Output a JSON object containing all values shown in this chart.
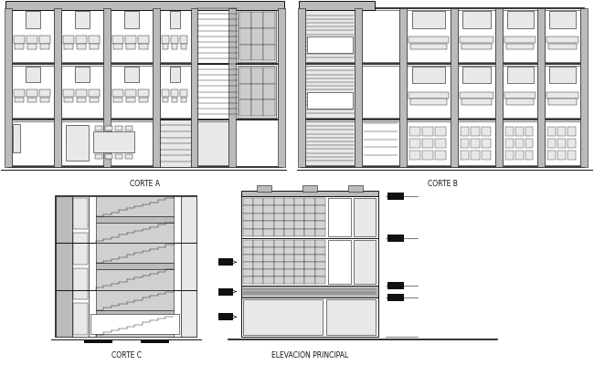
{
  "bg_color": "#ffffff",
  "line_color": "#111111",
  "fill_light": "#e8e8e8",
  "fill_medium": "#bbbbbb",
  "fill_dark": "#777777",
  "fill_black": "#111111",
  "title_fontsize": 5.5,
  "labels": {
    "corte_a": "CORTE A",
    "corte_b": "CORTE B",
    "corte_c": "CORTE C",
    "elevacion": "ELEVACION PRINCIPAL"
  }
}
